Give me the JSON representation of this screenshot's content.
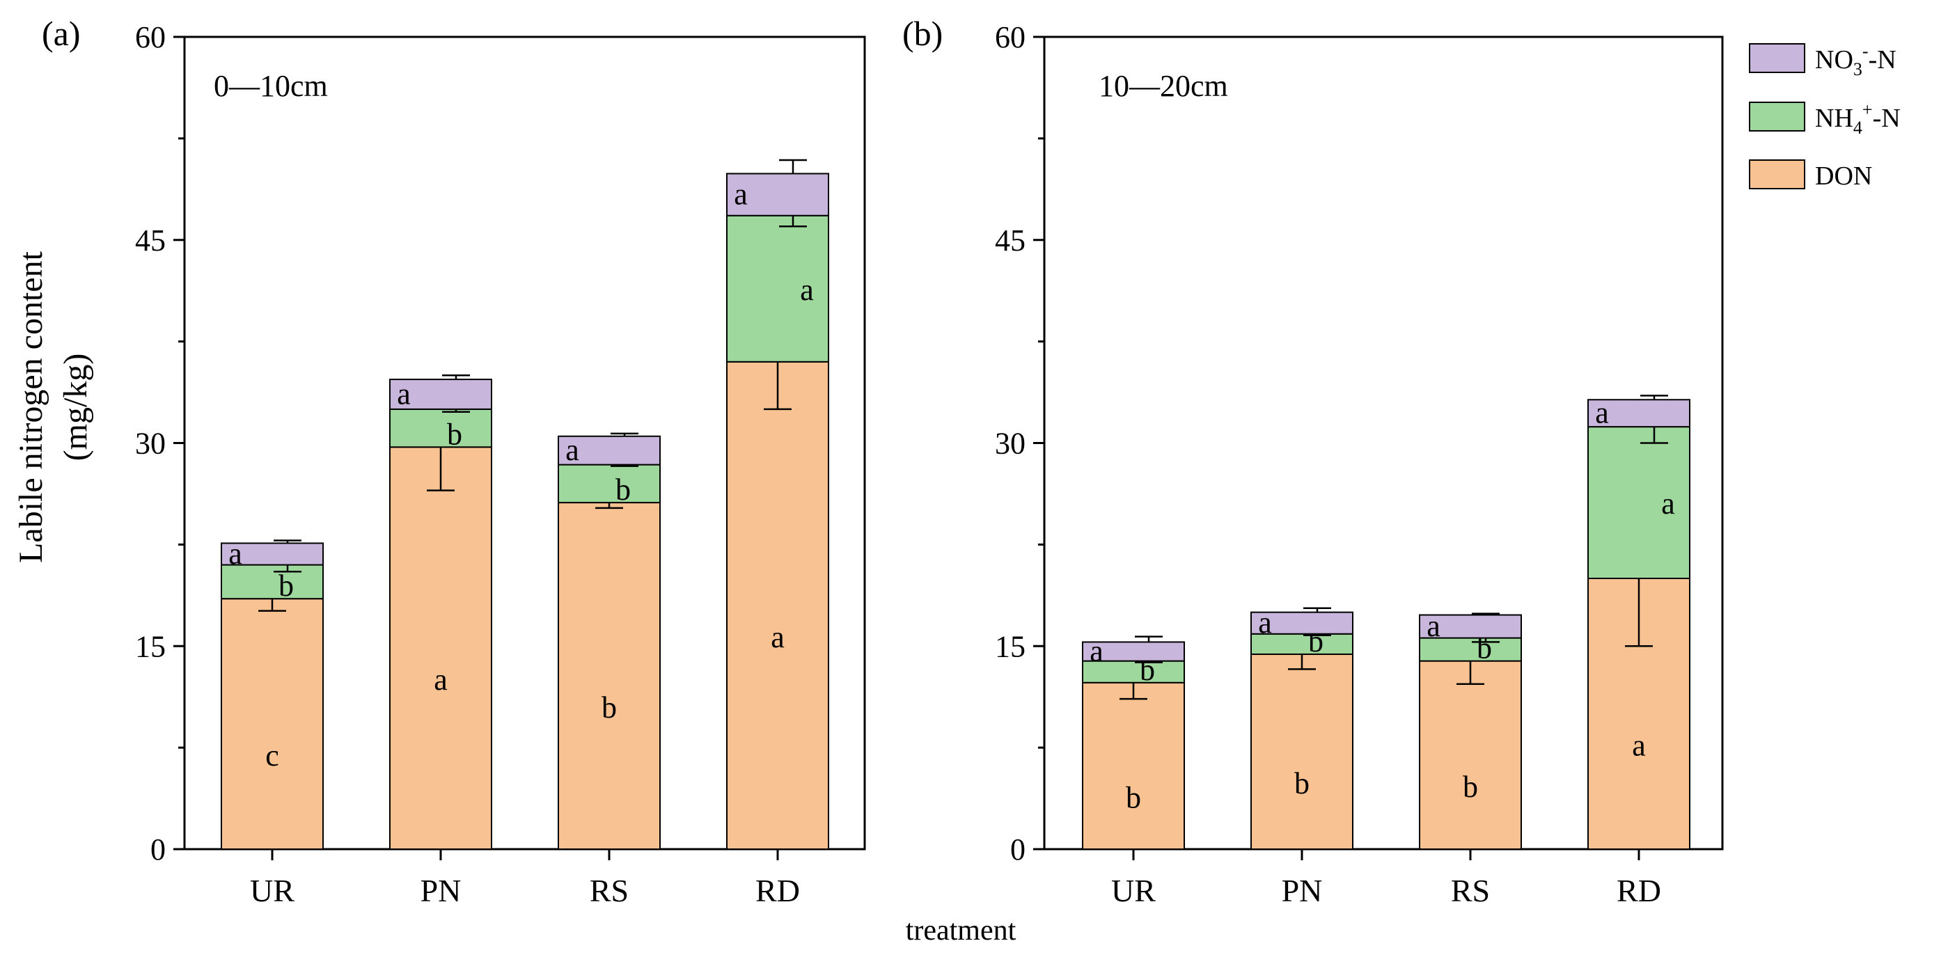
{
  "figure": {
    "ylabel_line1": "Labile nitrogen content",
    "ylabel_line2": "(mg/kg)",
    "xlabel": "treatment"
  },
  "legend": {
    "position": "top-right",
    "items": [
      {
        "base": "NO",
        "sub": "3",
        "sup": "-",
        "tail": "-N",
        "color": "#c9b6dc"
      },
      {
        "base": "NH",
        "sub": "4",
        "sup": "+",
        "tail": "-N",
        "color": "#9ed89d"
      },
      {
        "base": "DON",
        "sub": "",
        "sup": "",
        "tail": "",
        "color": "#f9c292"
      }
    ]
  },
  "chart_data": [
    {
      "type": "bar",
      "stacked": true,
      "panel_label": "(a)",
      "depth_label": "0—10cm",
      "categories": [
        "UR",
        "PN",
        "RS",
        "RD"
      ],
      "ylim": [
        0,
        60
      ],
      "yticks": [
        "0",
        "15",
        "30",
        "45",
        "60"
      ],
      "series": [
        {
          "name": "DON",
          "color": "#f9c292",
          "values": [
            18.5,
            29.7,
            25.6,
            36.0
          ],
          "errors": [
            0.9,
            3.2,
            0.4,
            3.5
          ],
          "letters": [
            "c",
            "a",
            "b",
            "a"
          ]
        },
        {
          "name": "NH4+-N",
          "color": "#9ed89d",
          "values": [
            2.5,
            2.8,
            2.8,
            10.8
          ],
          "errors": [
            0.5,
            0.2,
            0.1,
            0.8
          ],
          "letters": [
            "b",
            "b",
            "b",
            "a"
          ]
        },
        {
          "name": "NO3--N",
          "color": "#c9b6dc",
          "values": [
            1.6,
            2.2,
            2.1,
            3.1
          ],
          "errors": [
            0.2,
            0.3,
            0.2,
            1.0
          ],
          "letters": [
            "a",
            "a",
            "a",
            "a"
          ]
        }
      ]
    },
    {
      "type": "bar",
      "stacked": true,
      "panel_label": "(b)",
      "depth_label": "10—20cm",
      "categories": [
        "UR",
        "PN",
        "RS",
        "RD"
      ],
      "ylim": [
        0,
        60
      ],
      "yticks": [
        "0",
        "15",
        "30",
        "45",
        "60"
      ],
      "series": [
        {
          "name": "DON",
          "color": "#f9c292",
          "values": [
            12.3,
            14.4,
            13.9,
            20.0
          ],
          "errors": [
            1.2,
            1.1,
            1.7,
            5.0
          ],
          "letters": [
            "b",
            "b",
            "b",
            "a"
          ]
        },
        {
          "name": "NH4+-N",
          "color": "#9ed89d",
          "values": [
            1.6,
            1.5,
            1.7,
            11.2
          ],
          "errors": [
            0.1,
            0.1,
            0.3,
            1.2
          ],
          "letters": [
            "b",
            "b",
            "b",
            "a"
          ]
        },
        {
          "name": "NO3--N",
          "color": "#c9b6dc",
          "values": [
            1.4,
            1.6,
            1.7,
            2.0
          ],
          "errors": [
            0.4,
            0.3,
            0.1,
            0.3
          ],
          "letters": [
            "a",
            "a",
            "a",
            "a"
          ]
        }
      ]
    }
  ]
}
